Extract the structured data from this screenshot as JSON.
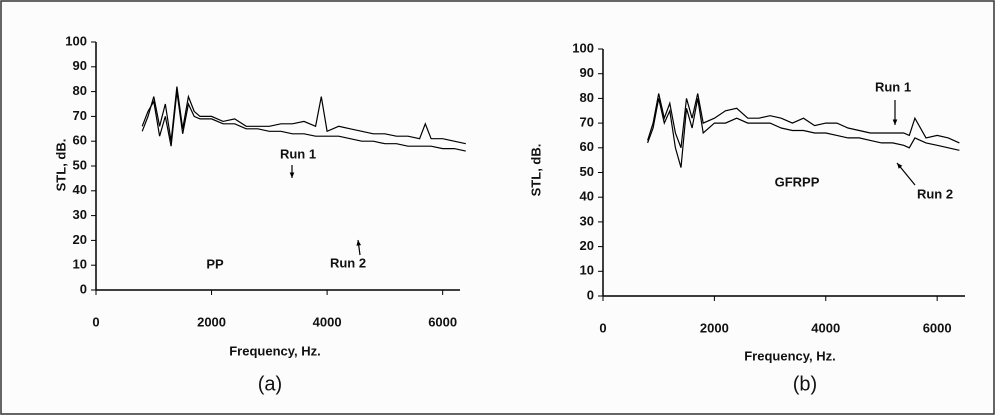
{
  "chart_data": [
    {
      "type": "line",
      "annotation": "PP",
      "caption": "(a)",
      "xlabel": "Frequency, Hz.",
      "ylabel": "STL, dB.",
      "xlim": [
        0,
        6300
      ],
      "ylim": [
        0,
        100
      ],
      "xticks": [
        0,
        2000,
        4000,
        6000
      ],
      "yticks": [
        0,
        10,
        20,
        30,
        40,
        50,
        60,
        70,
        80,
        90,
        100
      ],
      "x": [
        800,
        900,
        1000,
        1100,
        1200,
        1300,
        1400,
        1500,
        1600,
        1700,
        1800,
        2000,
        2200,
        2400,
        2600,
        2800,
        3000,
        3200,
        3400,
        3600,
        3800,
        3900,
        4000,
        4200,
        4400,
        4600,
        4800,
        5000,
        5200,
        5400,
        5600,
        5700,
        5800,
        6000,
        6200,
        6400
      ],
      "series": [
        {
          "name": "Run 1",
          "color": "#000000",
          "values": [
            64,
            70,
            78,
            66,
            75,
            60,
            82,
            65,
            78,
            72,
            70,
            70,
            68,
            69,
            66,
            66,
            66,
            67,
            67,
            68,
            66,
            78,
            64,
            66,
            65,
            64,
            63,
            63,
            62,
            62,
            61,
            67,
            61,
            61,
            60,
            59
          ]
        },
        {
          "name": "Run 2",
          "color": "#000000",
          "values": [
            66,
            72,
            76,
            62,
            70,
            58,
            80,
            63,
            75,
            70,
            69,
            69,
            67,
            67,
            65,
            65,
            64,
            64,
            63,
            63,
            62,
            62,
            62,
            62,
            61,
            60,
            60,
            59,
            59,
            58,
            58,
            58,
            58,
            57,
            57,
            56
          ]
        }
      ]
    },
    {
      "type": "line",
      "annotation": "GFRPP",
      "caption": "(b)",
      "xlabel": "Frequency, Hz.",
      "ylabel": "STL, dB.",
      "xlim": [
        0,
        6500
      ],
      "ylim": [
        0,
        100
      ],
      "xticks": [
        0,
        2000,
        4000,
        6000
      ],
      "yticks": [
        0,
        10,
        20,
        30,
        40,
        50,
        60,
        70,
        80,
        90,
        100
      ],
      "x": [
        800,
        900,
        1000,
        1100,
        1200,
        1300,
        1400,
        1500,
        1600,
        1700,
        1800,
        2000,
        2200,
        2400,
        2600,
        2800,
        3000,
        3200,
        3400,
        3600,
        3800,
        4000,
        4200,
        4400,
        4600,
        4800,
        5000,
        5200,
        5400,
        5500,
        5600,
        5800,
        6000,
        6200,
        6400
      ],
      "series": [
        {
          "name": "Run 1",
          "color": "#000000",
          "values": [
            63,
            70,
            82,
            72,
            78,
            66,
            60,
            80,
            72,
            82,
            70,
            72,
            75,
            76,
            72,
            72,
            73,
            72,
            70,
            72,
            69,
            70,
            70,
            68,
            67,
            66,
            66,
            66,
            66,
            65,
            72,
            64,
            65,
            64,
            62
          ]
        },
        {
          "name": "Run 2",
          "color": "#000000",
          "values": [
            62,
            68,
            80,
            70,
            75,
            60,
            52,
            76,
            68,
            80,
            66,
            70,
            70,
            72,
            70,
            70,
            70,
            68,
            67,
            67,
            66,
            66,
            65,
            64,
            64,
            63,
            62,
            62,
            61,
            60,
            64,
            62,
            61,
            60,
            59
          ]
        }
      ]
    }
  ]
}
